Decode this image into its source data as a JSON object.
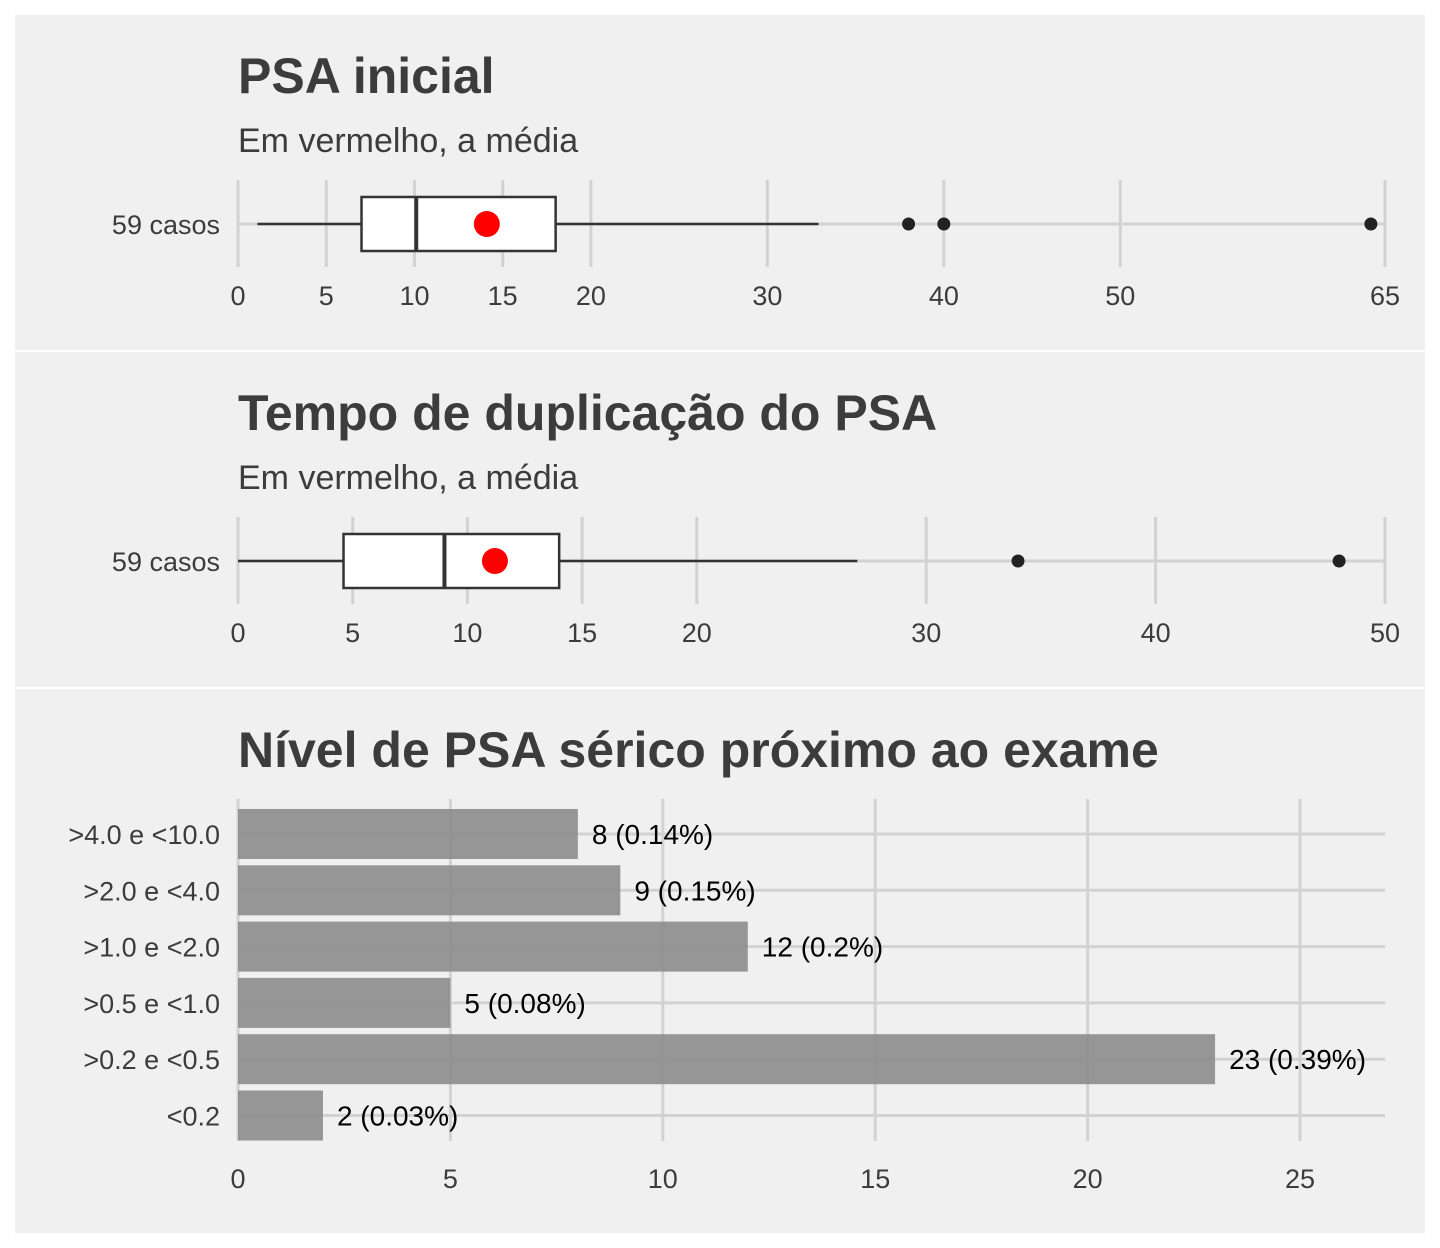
{
  "colors": {
    "panel_bg": "#f0f0f0",
    "grid": "#d2d2d2",
    "text": "#3c3c3c",
    "box_fill": "#ffffff",
    "box_stroke": "#333333",
    "mean_point": "#ff0000",
    "bar_fill": "#8c8c8c"
  },
  "chart_data": [
    {
      "type": "boxplot",
      "title": "PSA inicial",
      "subtitle": "Em vermelho, a média",
      "category": "59 casos",
      "x_ticks": [
        0,
        5,
        10,
        15,
        20,
        30,
        40,
        50,
        65
      ],
      "xlim": [
        0,
        65
      ],
      "whisker_low": 1.1,
      "q1": 7.0,
      "median": 10.1,
      "q3": 18.0,
      "whisker_high": 32.9,
      "mean": 14.1,
      "outliers": [
        38,
        40,
        64.2
      ],
      "grid": true
    },
    {
      "type": "boxplot",
      "title": "Tempo de duplicação do PSA",
      "subtitle": "Em vermelho, a média",
      "category": "59 casos",
      "x_ticks": [
        0,
        5,
        10,
        15,
        20,
        30,
        40,
        50
      ],
      "xlim": [
        0,
        50
      ],
      "whisker_low": 0,
      "q1": 4.6,
      "median": 9.0,
      "q3": 14.0,
      "whisker_high": 27.0,
      "mean": 11.2,
      "outliers": [
        34,
        48
      ],
      "grid": true
    },
    {
      "type": "bar",
      "orientation": "horizontal",
      "title": "Nível de PSA sérico próximo ao exame",
      "categories": [
        "<0.2",
        ">0.2 e <0.5",
        ">0.5 e <1.0",
        ">1.0 e <2.0",
        ">2.0 e <4.0",
        ">4.0 e <10.0"
      ],
      "values": [
        2,
        23,
        5,
        12,
        9,
        8
      ],
      "labels": [
        "2 (0.03%)",
        "23 (0.39%)",
        "5 (0.08%)",
        "12 (0.2%)",
        "9 (0.15%)",
        "8 (0.14%)"
      ],
      "x_ticks": [
        0,
        5,
        10,
        15,
        20,
        25
      ],
      "xlim": [
        0,
        27
      ],
      "grid": true
    }
  ]
}
